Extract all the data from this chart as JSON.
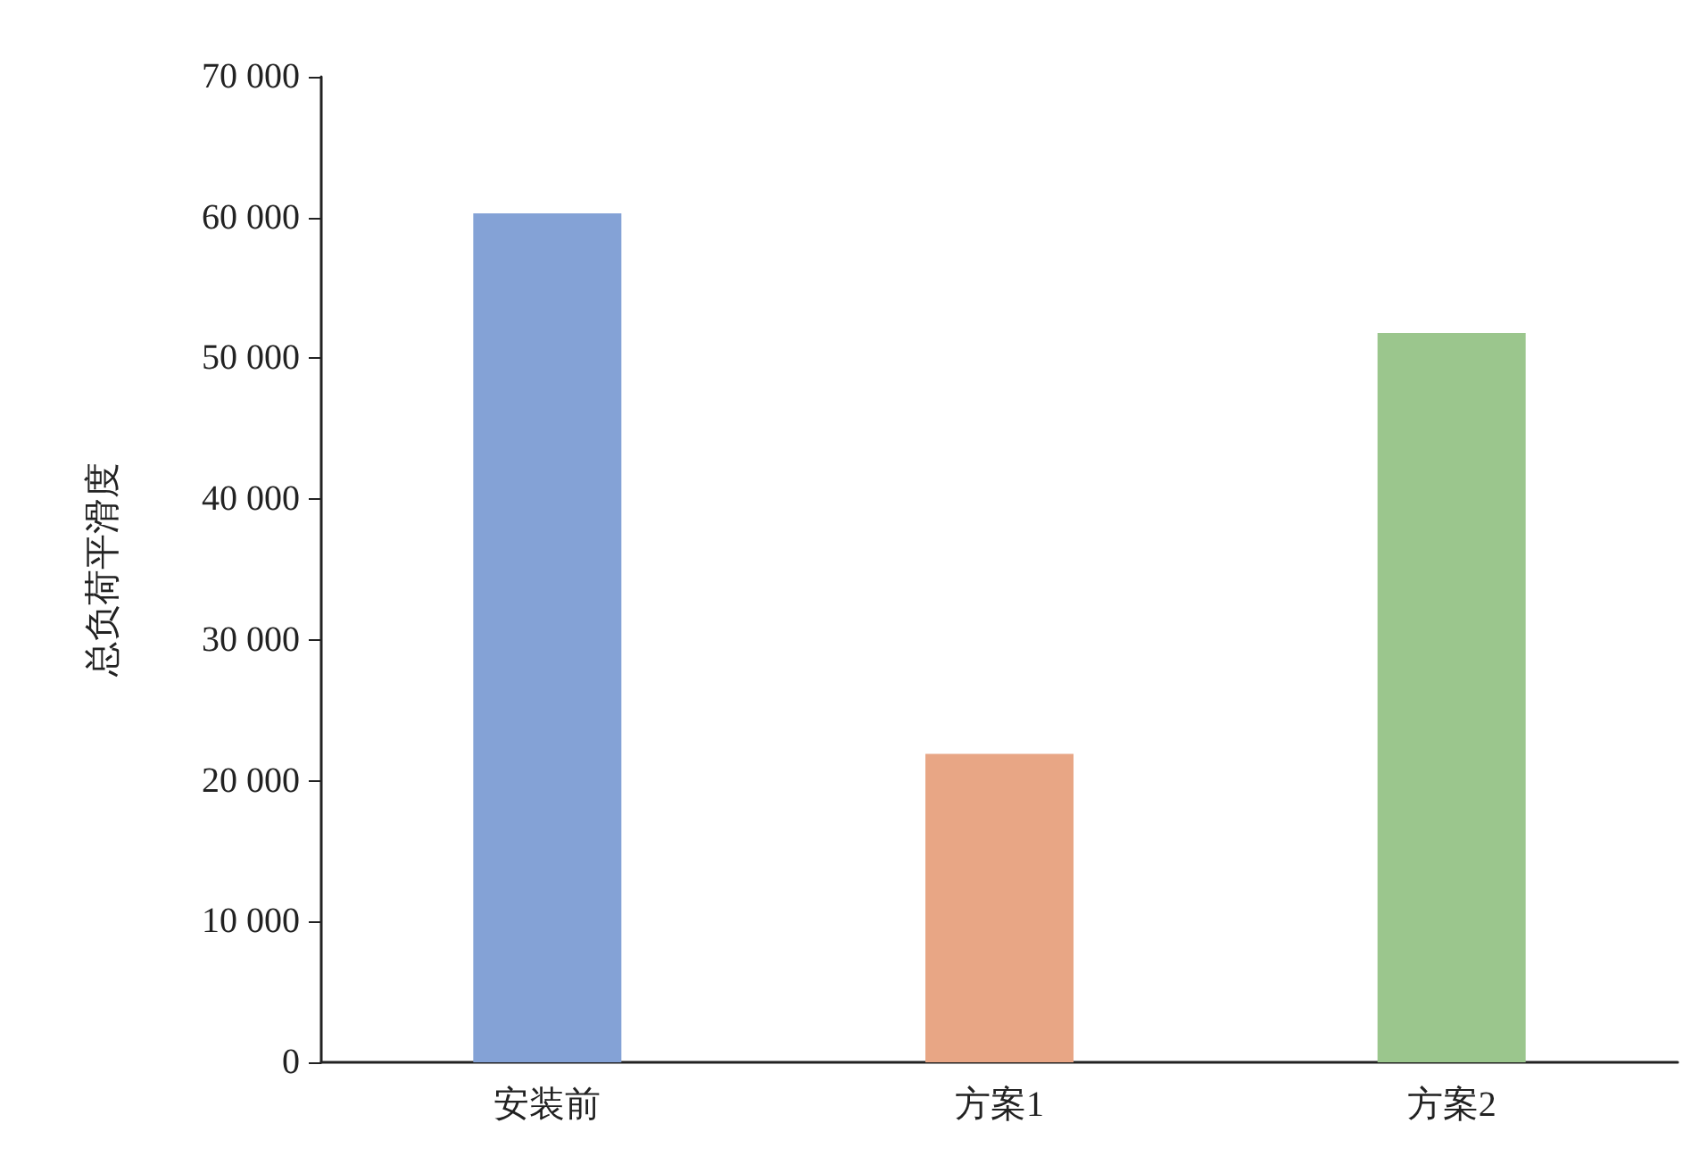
{
  "chart_data": {
    "type": "bar",
    "ylabel": "总负荷平滑度",
    "categories": [
      "安装前",
      "方案1",
      "方案2"
    ],
    "values": [
      60300,
      21900,
      51800
    ],
    "colors": [
      "#84a2d6",
      "#e8a685",
      "#9bc68d"
    ],
    "ylim": [
      0,
      70000
    ],
    "yticks": [
      0,
      {
        "value": 10000,
        "label": "10 000"
      },
      {
        "value": 20000,
        "label": "20 000"
      },
      {
        "value": 30000,
        "label": "30 000"
      },
      {
        "value": 40000,
        "label": "40 000"
      },
      {
        "value": 50000,
        "label": "50 000"
      },
      {
        "value": 60000,
        "label": "60 000"
      },
      {
        "value": 70000,
        "label": "70 000"
      }
    ],
    "grid": false
  }
}
